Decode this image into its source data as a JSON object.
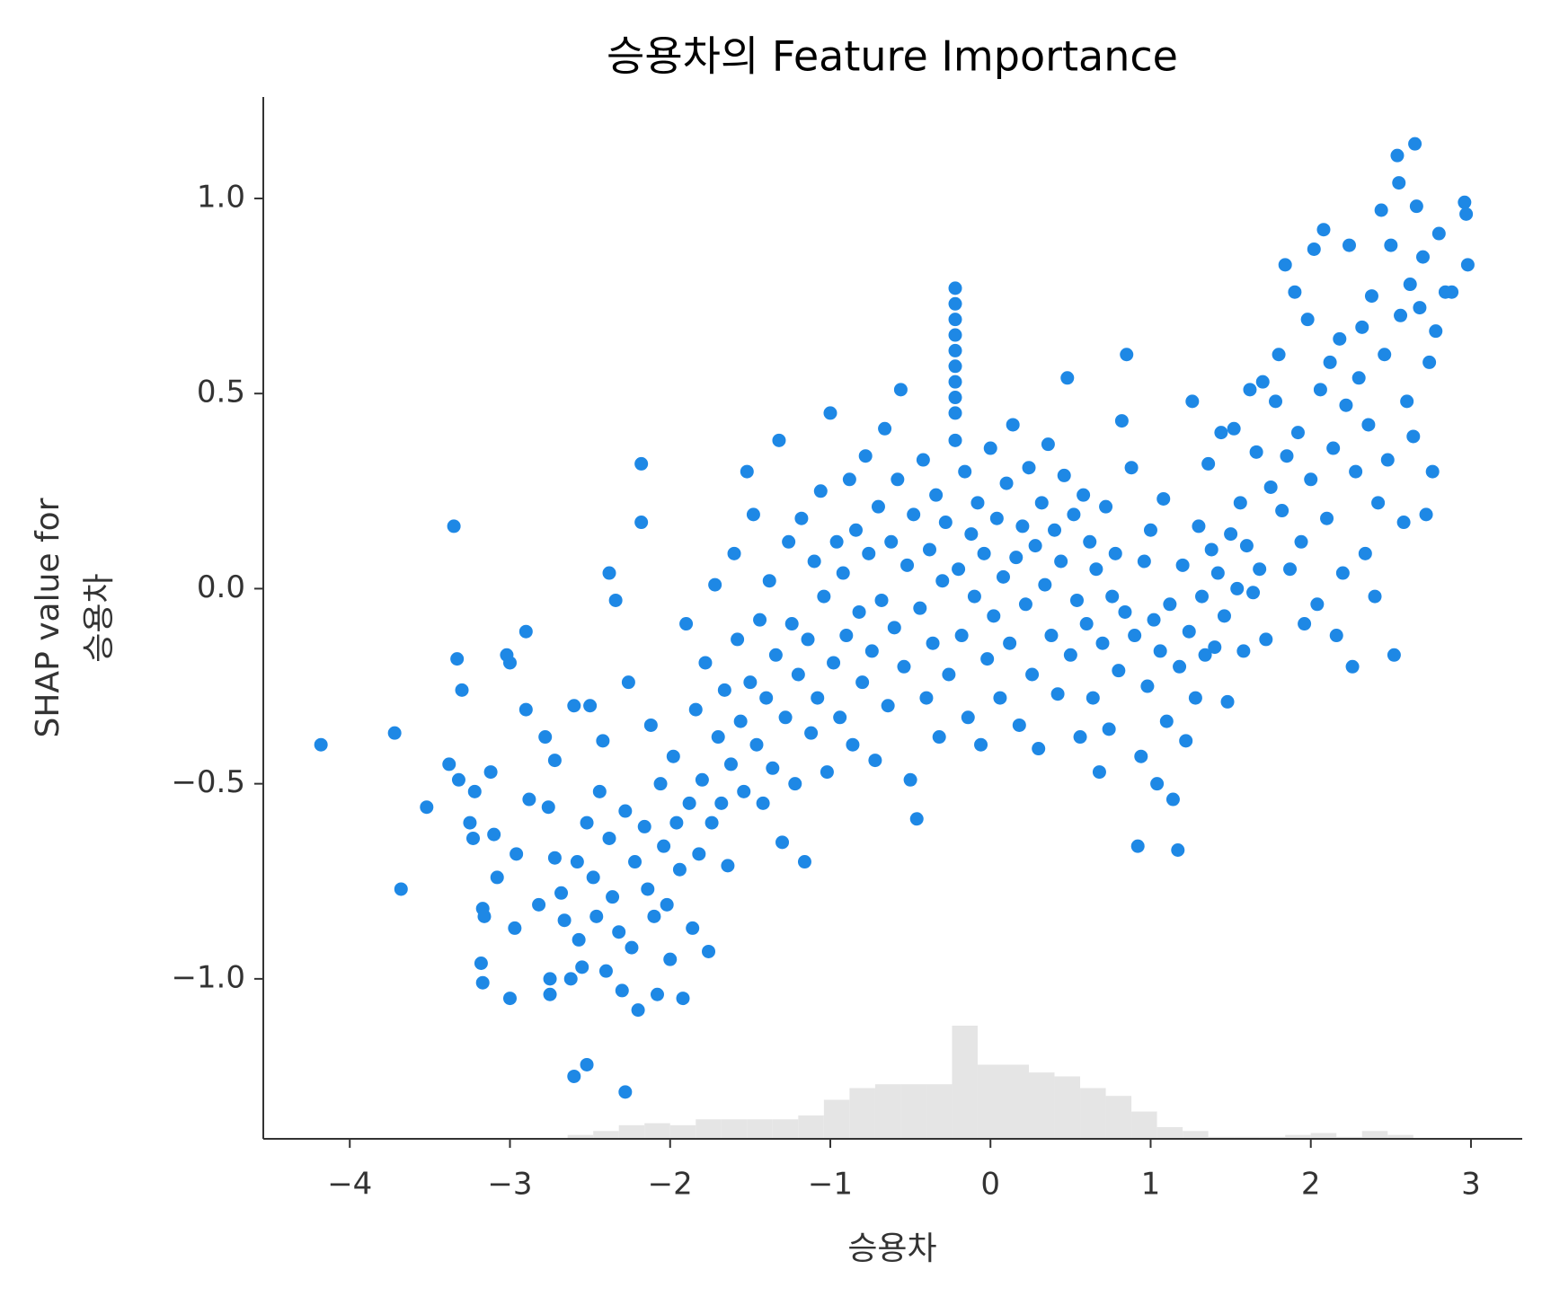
{
  "chart_data": {
    "type": "scatter",
    "title": "승용차의 Feature Importance",
    "xlabel": "승용차",
    "ylabel": [
      "SHAP value for",
      "승용차"
    ],
    "color": "#1e88e5",
    "xlim": [
      -4.54,
      3.32
    ],
    "ylim": [
      -1.41,
      1.26
    ],
    "xticks": [
      {
        "value": -4,
        "label": "−4"
      },
      {
        "value": -3,
        "label": "−3"
      },
      {
        "value": -2,
        "label": "−2"
      },
      {
        "value": -1,
        "label": "−1"
      },
      0,
      1,
      2,
      3
    ],
    "yticks": [
      {
        "value": -1.0,
        "label": "−1.0"
      },
      {
        "value": -0.5,
        "label": "−0.5"
      },
      {
        "value": 0.0,
        "label": "0.0"
      },
      {
        "value": 0.5,
        "label": "0.5"
      },
      {
        "value": 1.0,
        "label": "1.0"
      }
    ],
    "histogram": {
      "color": "#e5e5e5",
      "bins": [
        -3.28,
        -3.12,
        -2.96,
        -2.8,
        -2.64,
        -2.48,
        -2.32,
        -2.16,
        -2.0,
        -1.84,
        -1.68,
        -1.52,
        -1.36,
        -1.2,
        -1.04,
        -0.88,
        -0.72,
        -0.56,
        -0.4,
        -0.24,
        -0.08,
        0.08,
        0.24,
        0.4,
        0.56,
        0.72,
        0.88,
        1.04,
        1.2,
        1.36,
        1.52,
        1.68,
        1.84,
        2.0,
        2.16,
        2.32,
        2.48,
        2.64,
        2.8,
        2.96
      ],
      "values": [
        -1.41,
        -1.41,
        -1.41,
        -1.41,
        -1.4,
        -1.39,
        -1.375,
        -1.37,
        -1.375,
        -1.36,
        -1.36,
        -1.36,
        -1.36,
        -1.35,
        -1.31,
        -1.28,
        -1.27,
        -1.27,
        -1.27,
        -1.12,
        -1.22,
        -1.22,
        -1.24,
        -1.25,
        -1.28,
        -1.3,
        -1.34,
        -1.38,
        -1.39,
        -1.405,
        -1.405,
        -1.405,
        -1.4,
        -1.395,
        -1.405,
        -1.39,
        -1.4,
        -1.41,
        -1.41
      ]
    },
    "x": [
      -4.18,
      -3.72,
      -3.68,
      -3.52,
      -3.35,
      -3.33,
      -3.3,
      -3.38,
      -3.32,
      -3.25,
      -3.23,
      -3.22,
      -3.17,
      -3.16,
      -3.18,
      -3.17,
      -3.12,
      -3.1,
      -3.08,
      -3.0,
      -3.02,
      -3.0,
      -2.96,
      -2.97,
      -2.9,
      -2.88,
      -2.9,
      -2.82,
      -2.78,
      -2.76,
      -2.75,
      -2.75,
      -2.72,
      -2.72,
      -2.68,
      -2.66,
      -2.62,
      -2.6,
      -2.6,
      -2.58,
      -2.57,
      -2.55,
      -2.52,
      -2.52,
      -2.5,
      -2.48,
      -2.46,
      -2.44,
      -2.42,
      -2.4,
      -2.38,
      -2.38,
      -2.36,
      -2.34,
      -2.32,
      -2.3,
      -2.28,
      -2.28,
      -2.26,
      -2.24,
      -2.22,
      -2.2,
      -2.18,
      -2.18,
      -2.16,
      -2.14,
      -2.12,
      -2.1,
      -2.08,
      -2.06,
      -2.04,
      -2.02,
      -2.0,
      -1.98,
      -1.96,
      -1.94,
      -1.92,
      -1.9,
      -1.88,
      -1.86,
      -1.84,
      -1.82,
      -1.8,
      -1.78,
      -1.76,
      -1.74,
      -1.72,
      -1.7,
      -1.68,
      -1.66,
      -1.64,
      -1.62,
      -1.6,
      -1.58,
      -1.56,
      -1.54,
      -1.52,
      -1.5,
      -1.48,
      -1.46,
      -1.44,
      -1.42,
      -1.4,
      -1.38,
      -1.36,
      -1.34,
      -1.32,
      -1.3,
      -1.28,
      -1.26,
      -1.24,
      -1.22,
      -1.2,
      -1.18,
      -1.16,
      -1.14,
      -1.12,
      -1.1,
      -1.08,
      -1.06,
      -1.04,
      -1.02,
      -1.0,
      -0.98,
      -0.96,
      -0.94,
      -0.92,
      -0.9,
      -0.88,
      -0.86,
      -0.84,
      -0.82,
      -0.8,
      -0.78,
      -0.76,
      -0.74,
      -0.72,
      -0.7,
      -0.68,
      -0.66,
      -0.64,
      -0.62,
      -0.6,
      -0.58,
      -0.56,
      -0.54,
      -0.52,
      -0.5,
      -0.48,
      -0.46,
      -0.44,
      -0.42,
      -0.4,
      -0.38,
      -0.36,
      -0.34,
      -0.32,
      -0.3,
      -0.28,
      -0.26,
      -0.22,
      -0.22,
      -0.22,
      -0.22,
      -0.22,
      -0.22,
      -0.22,
      -0.22,
      -0.22,
      -0.22,
      -0.2,
      -0.18,
      -0.16,
      -0.14,
      -0.12,
      -0.1,
      -0.08,
      -0.06,
      -0.04,
      -0.02,
      0.0,
      0.02,
      0.04,
      0.06,
      0.08,
      0.1,
      0.12,
      0.14,
      0.16,
      0.18,
      0.2,
      0.22,
      0.24,
      0.26,
      0.28,
      0.3,
      0.32,
      0.34,
      0.36,
      0.38,
      0.4,
      0.42,
      0.44,
      0.46,
      0.48,
      0.5,
      0.52,
      0.54,
      0.56,
      0.58,
      0.6,
      0.62,
      0.64,
      0.66,
      0.68,
      0.7,
      0.72,
      0.74,
      0.76,
      0.78,
      0.8,
      0.82,
      0.84,
      0.85,
      0.88,
      0.9,
      0.92,
      0.94,
      0.96,
      0.98,
      1.0,
      1.02,
      1.04,
      1.06,
      1.08,
      1.1,
      1.12,
      1.14,
      1.17,
      1.18,
      1.2,
      1.22,
      1.24,
      1.26,
      1.28,
      1.3,
      1.32,
      1.34,
      1.36,
      1.38,
      1.4,
      1.42,
      1.44,
      1.46,
      1.48,
      1.5,
      1.52,
      1.54,
      1.56,
      1.58,
      1.6,
      1.62,
      1.64,
      1.66,
      1.68,
      1.7,
      1.72,
      1.75,
      1.78,
      1.8,
      1.82,
      1.84,
      1.85,
      1.87,
      1.9,
      1.92,
      1.94,
      1.96,
      1.98,
      2.0,
      2.02,
      2.04,
      2.06,
      2.08,
      2.1,
      2.12,
      2.14,
      2.16,
      2.18,
      2.2,
      2.22,
      2.24,
      2.26,
      2.28,
      2.3,
      2.32,
      2.34,
      2.36,
      2.38,
      2.4,
      2.42,
      2.44,
      2.46,
      2.48,
      2.5,
      2.52,
      2.54,
      2.55,
      2.56,
      2.58,
      2.6,
      2.62,
      2.64,
      2.65,
      2.66,
      2.68,
      2.7,
      2.72,
      2.74,
      2.76,
      2.78,
      2.8,
      2.84,
      2.88,
      2.96,
      2.97,
      2.98
    ],
    "values": [
      -0.4,
      -0.37,
      -0.77,
      -0.56,
      0.16,
      -0.18,
      -0.26,
      -0.45,
      -0.49,
      -0.6,
      -0.64,
      -0.52,
      -0.82,
      -0.84,
      -0.96,
      -1.01,
      -0.47,
      -0.63,
      -0.74,
      -1.05,
      -0.17,
      -0.19,
      -0.68,
      -0.87,
      -0.11,
      -0.54,
      -0.31,
      -0.81,
      -0.38,
      -0.56,
      -1.0,
      -1.04,
      -0.69,
      -0.44,
      -0.78,
      -0.85,
      -1.0,
      -1.25,
      -0.3,
      -0.7,
      -0.9,
      -0.97,
      -1.22,
      -0.6,
      -0.3,
      -0.74,
      -0.84,
      -0.52,
      -0.39,
      -0.98,
      0.04,
      -0.64,
      -0.79,
      -0.03,
      -0.88,
      -1.03,
      -1.29,
      -0.57,
      -0.24,
      -0.92,
      -0.7,
      -1.08,
      0.32,
      0.17,
      -0.61,
      -0.77,
      -0.35,
      -0.84,
      -1.04,
      -0.5,
      -0.66,
      -0.81,
      -0.95,
      -0.43,
      -0.6,
      -0.72,
      -1.05,
      -0.09,
      -0.55,
      -0.87,
      -0.31,
      -0.68,
      -0.49,
      -0.19,
      -0.93,
      -0.6,
      0.01,
      -0.38,
      -0.55,
      -0.26,
      -0.71,
      -0.45,
      0.09,
      -0.13,
      -0.34,
      -0.52,
      0.3,
      -0.24,
      0.19,
      -0.4,
      -0.08,
      -0.55,
      -0.28,
      0.02,
      -0.46,
      -0.17,
      0.38,
      -0.65,
      -0.33,
      0.12,
      -0.09,
      -0.5,
      -0.22,
      0.18,
      -0.7,
      -0.13,
      -0.37,
      0.07,
      -0.28,
      0.25,
      -0.02,
      -0.47,
      0.45,
      -0.19,
      0.12,
      -0.33,
      0.04,
      -0.12,
      0.28,
      -0.4,
      0.15,
      -0.06,
      -0.24,
      0.34,
      0.09,
      -0.16,
      -0.44,
      0.21,
      -0.03,
      0.41,
      -0.3,
      0.12,
      -0.1,
      0.28,
      0.51,
      -0.2,
      0.06,
      -0.49,
      0.19,
      -0.59,
      -0.05,
      0.33,
      -0.28,
      0.1,
      -0.14,
      0.24,
      -0.38,
      0.02,
      0.17,
      -0.22,
      0.77,
      0.73,
      0.69,
      0.65,
      0.61,
      0.57,
      0.53,
      0.49,
      0.45,
      0.38,
      0.05,
      -0.12,
      0.3,
      -0.33,
      0.14,
      -0.02,
      0.22,
      -0.4,
      0.09,
      -0.18,
      0.36,
      -0.07,
      0.18,
      -0.28,
      0.03,
      0.27,
      -0.14,
      0.42,
      0.08,
      -0.35,
      0.16,
      -0.04,
      0.31,
      -0.22,
      0.11,
      -0.41,
      0.22,
      0.01,
      0.37,
      -0.12,
      0.15,
      -0.27,
      0.07,
      0.29,
      0.54,
      -0.17,
      0.19,
      -0.03,
      -0.38,
      0.24,
      -0.09,
      0.12,
      -0.28,
      0.05,
      -0.47,
      -0.14,
      0.21,
      -0.36,
      -0.02,
      0.09,
      -0.21,
      0.43,
      -0.06,
      0.6,
      0.31,
      -0.12,
      -0.66,
      -0.43,
      0.07,
      -0.25,
      0.15,
      -0.08,
      -0.5,
      -0.16,
      0.23,
      -0.34,
      -0.04,
      -0.54,
      -0.67,
      -0.2,
      0.06,
      -0.39,
      -0.11,
      0.48,
      -0.28,
      0.16,
      -0.02,
      -0.17,
      0.32,
      0.1,
      -0.15,
      0.04,
      0.4,
      -0.07,
      -0.29,
      0.14,
      0.41,
      0.0,
      0.22,
      -0.16,
      0.11,
      0.51,
      -0.01,
      0.35,
      0.05,
      0.53,
      -0.13,
      0.26,
      0.48,
      0.6,
      0.2,
      0.83,
      0.34,
      0.05,
      0.76,
      0.4,
      0.12,
      -0.09,
      0.69,
      0.28,
      0.87,
      -0.04,
      0.51,
      0.92,
      0.18,
      0.58,
      0.36,
      -0.12,
      0.64,
      0.04,
      0.47,
      0.88,
      -0.2,
      0.3,
      0.54,
      0.67,
      0.09,
      0.42,
      0.75,
      -0.02,
      0.22,
      0.97,
      0.6,
      0.33,
      0.88,
      -0.17,
      1.11,
      1.04,
      0.7,
      0.17,
      0.48,
      0.78,
      0.39,
      1.14,
      0.98,
      0.72,
      0.85,
      0.19,
      0.58,
      0.3,
      0.66,
      0.91,
      0.76,
      0.76,
      0.99,
      0.96,
      0.83
    ]
  }
}
